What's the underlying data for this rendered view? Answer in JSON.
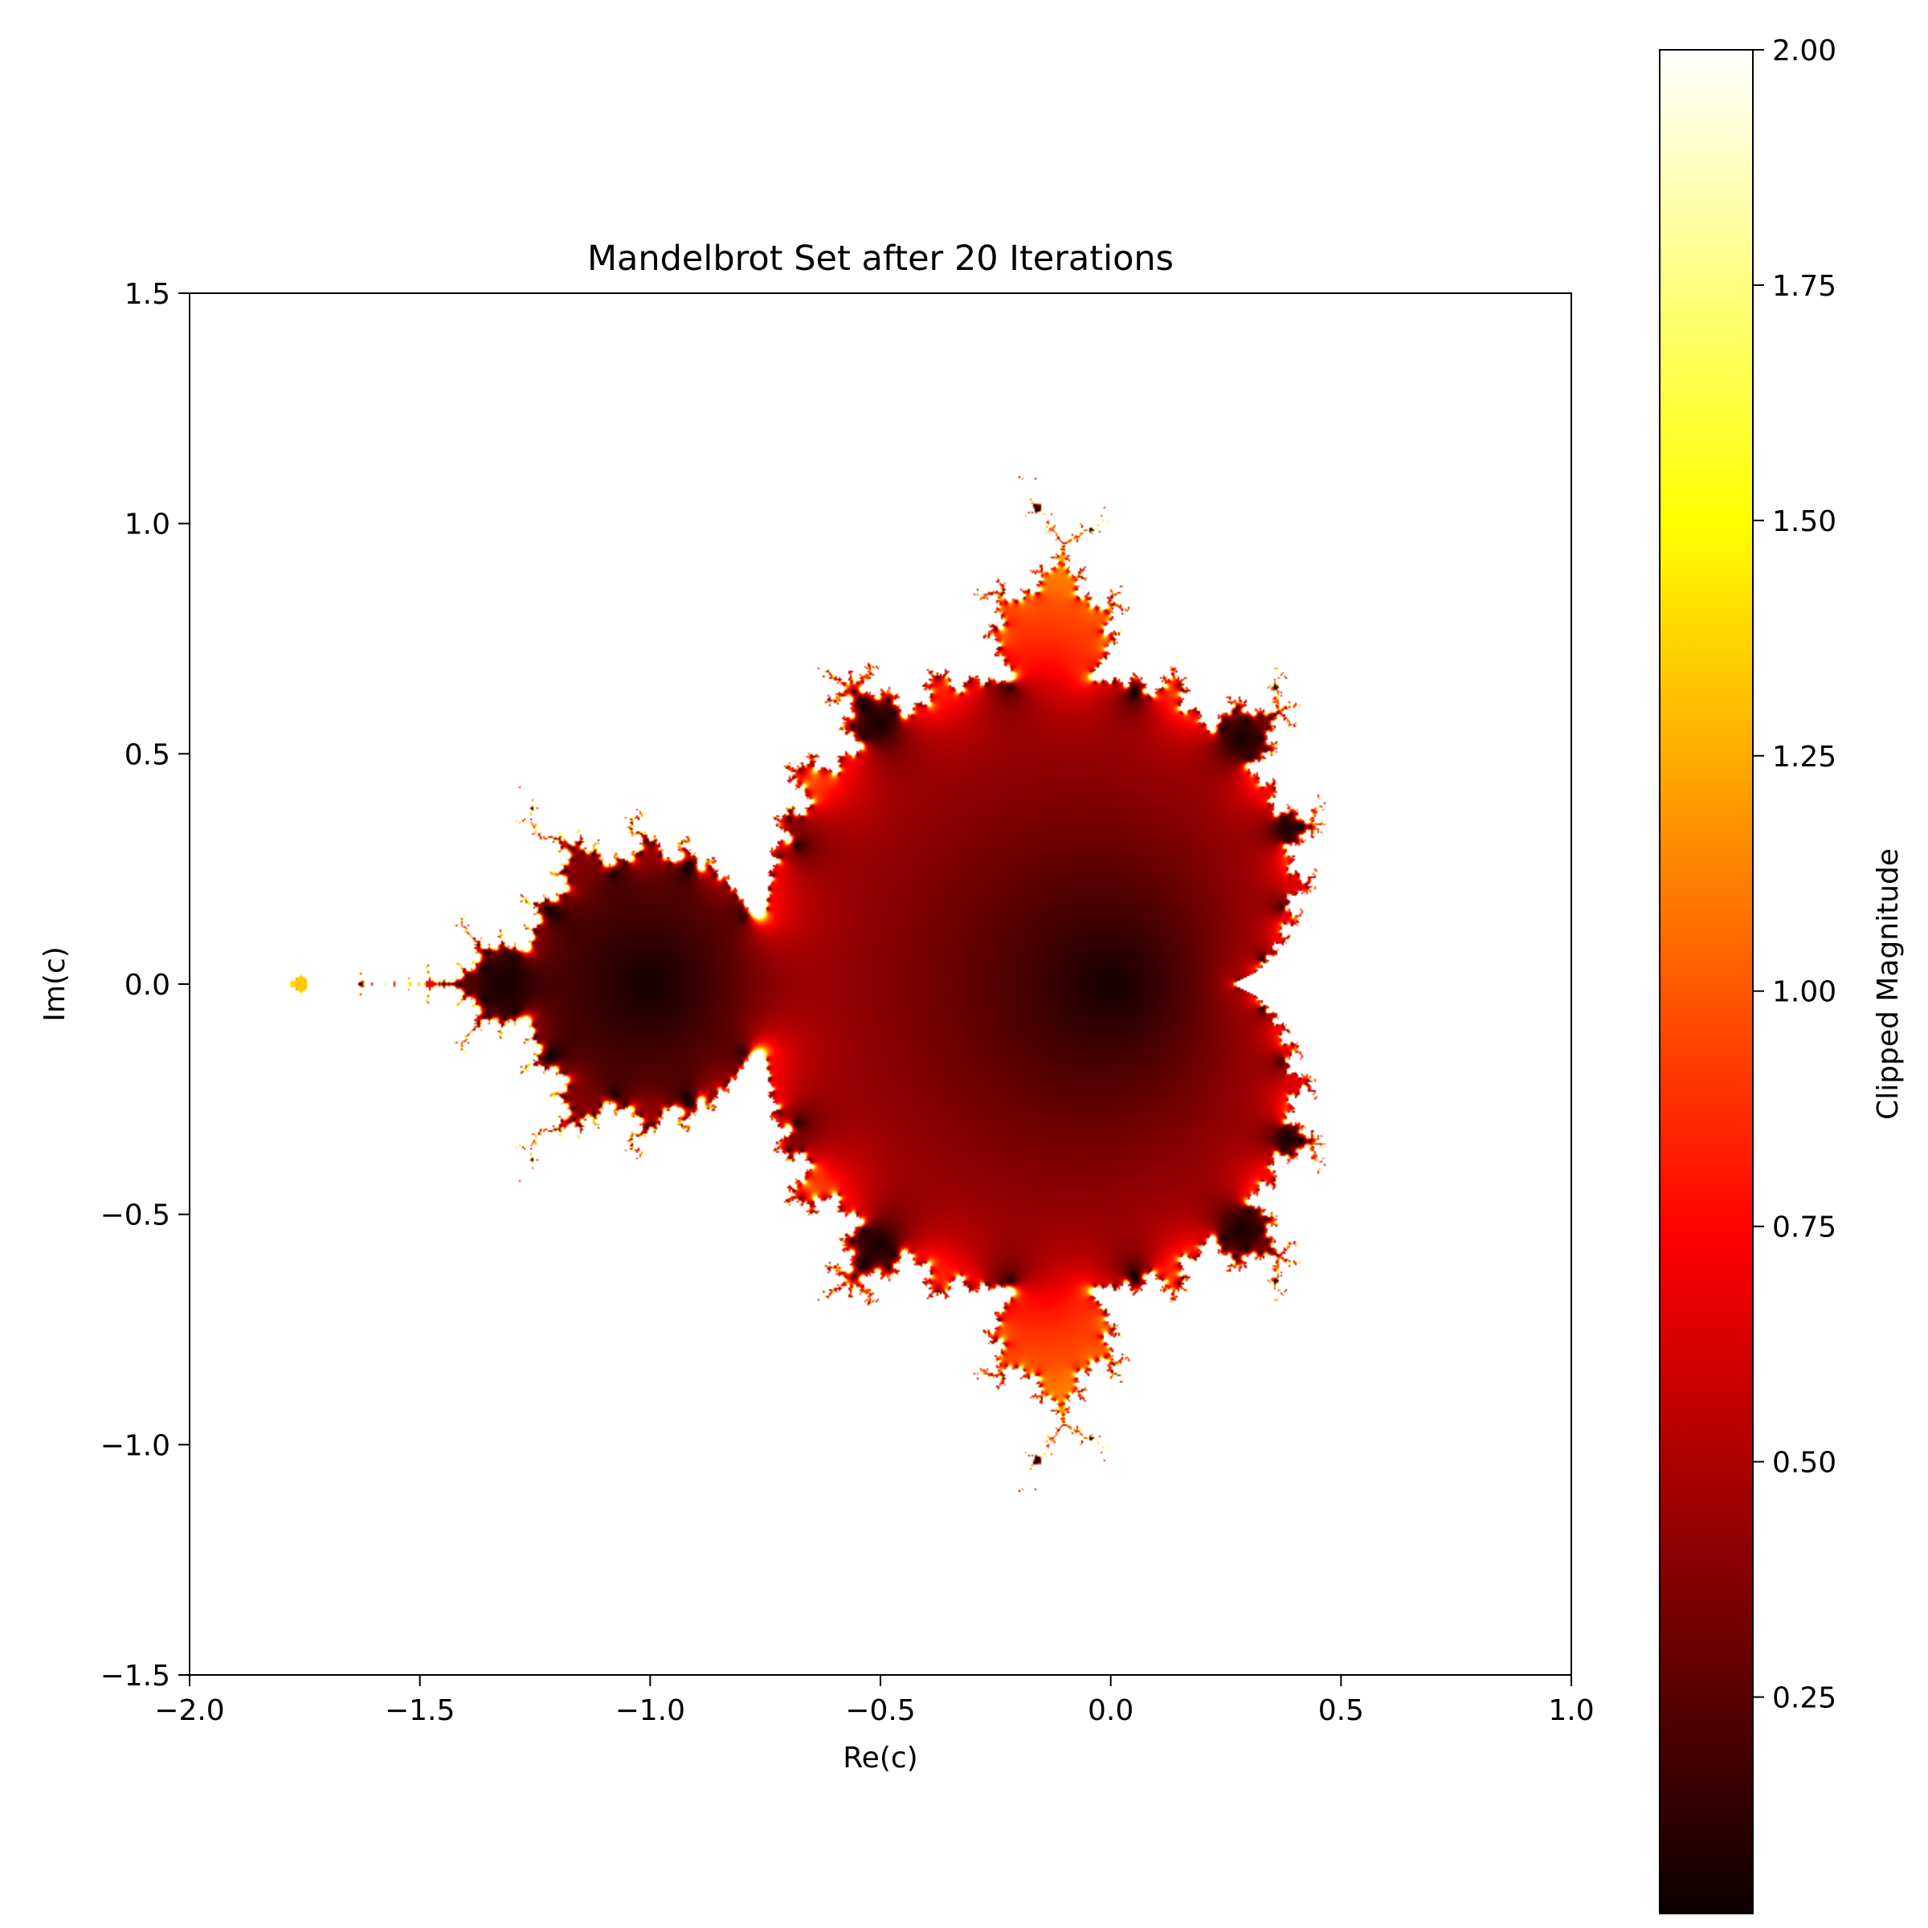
{
  "chart_data": {
    "type": "heatmap",
    "title": "Mandelbrot Set after 20 Iterations",
    "xlabel": "Re(c)",
    "ylabel": "Im(c)",
    "xlim": [
      -2.0,
      1.0
    ],
    "ylim": [
      -1.5,
      1.5
    ],
    "iterations": 20,
    "clip_max": 2.0,
    "grid": false,
    "colormap": "hot",
    "x_ticks": [
      {
        "value": -2.0,
        "label": "−2.0"
      },
      {
        "value": -1.5,
        "label": "−1.5"
      },
      {
        "value": -1.0,
        "label": "−1.0"
      },
      {
        "value": -0.5,
        "label": "−0.5"
      },
      {
        "value": 0.0,
        "label": "0.0"
      },
      {
        "value": 0.5,
        "label": "0.5"
      },
      {
        "value": 1.0,
        "label": "1.0"
      }
    ],
    "y_ticks": [
      {
        "value": 1.5,
        "label": "1.5"
      },
      {
        "value": 1.0,
        "label": "1.0"
      },
      {
        "value": 0.5,
        "label": "0.5"
      },
      {
        "value": 0.0,
        "label": "0.0"
      },
      {
        "value": -0.5,
        "label": "−0.5"
      },
      {
        "value": -1.0,
        "label": "−1.0"
      },
      {
        "value": -1.5,
        "label": "−1.5"
      }
    ],
    "colorbar": {
      "label": "Clipped Magnitude",
      "range": [
        0.02,
        2.0
      ],
      "ticks": [
        {
          "value": 2.0,
          "label": "2.00"
        },
        {
          "value": 1.75,
          "label": "1.75"
        },
        {
          "value": 1.5,
          "label": "1.50"
        },
        {
          "value": 1.25,
          "label": "1.25"
        },
        {
          "value": 1.0,
          "label": "1.00"
        },
        {
          "value": 0.75,
          "label": "0.75"
        },
        {
          "value": 0.5,
          "label": "0.50"
        },
        {
          "value": 0.25,
          "label": "0.25"
        }
      ]
    }
  }
}
